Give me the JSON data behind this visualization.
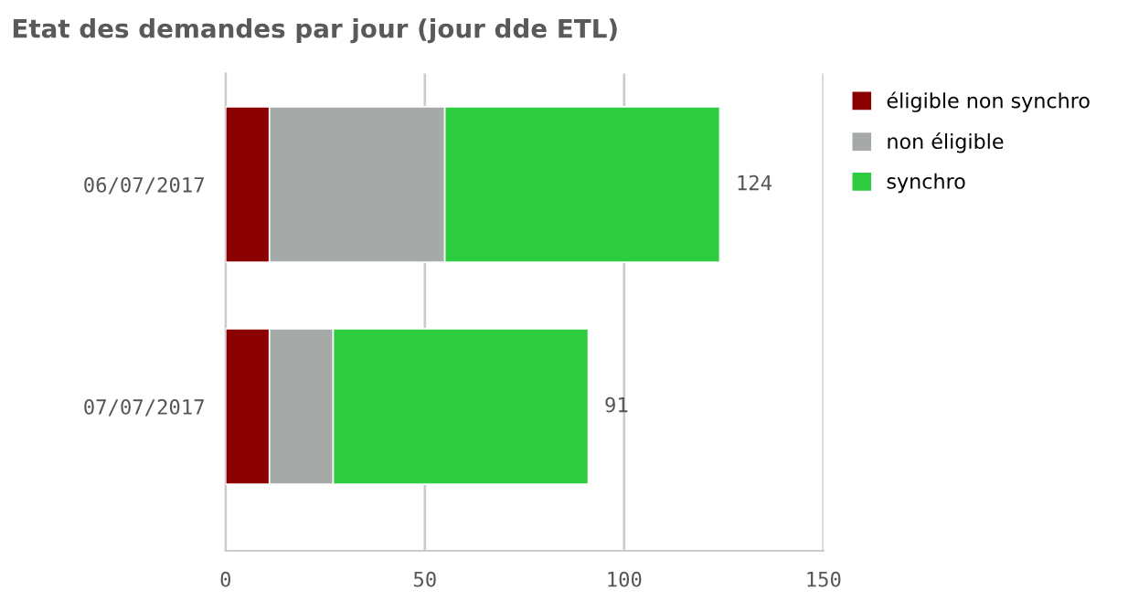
{
  "chart_data": {
    "type": "bar",
    "orientation": "horizontal",
    "stacked": true,
    "title": "Etat des demandes par jour (jour dde ETL)",
    "categories": [
      "06/07/2017",
      "07/07/2017"
    ],
    "series": [
      {
        "name": "éligible non synchro",
        "color": "#8b0000",
        "values": [
          11,
          11
        ]
      },
      {
        "name": "non éligible",
        "color": "#a5a9a8",
        "values": [
          44,
          16
        ]
      },
      {
        "name": "synchro",
        "color": "#2ecc40",
        "values": [
          69,
          64
        ]
      }
    ],
    "totals": [
      "124",
      "91"
    ],
    "xlim": [
      0,
      150
    ],
    "xticks": [
      0,
      50,
      100,
      150
    ],
    "grid": "x",
    "legend": "right"
  }
}
